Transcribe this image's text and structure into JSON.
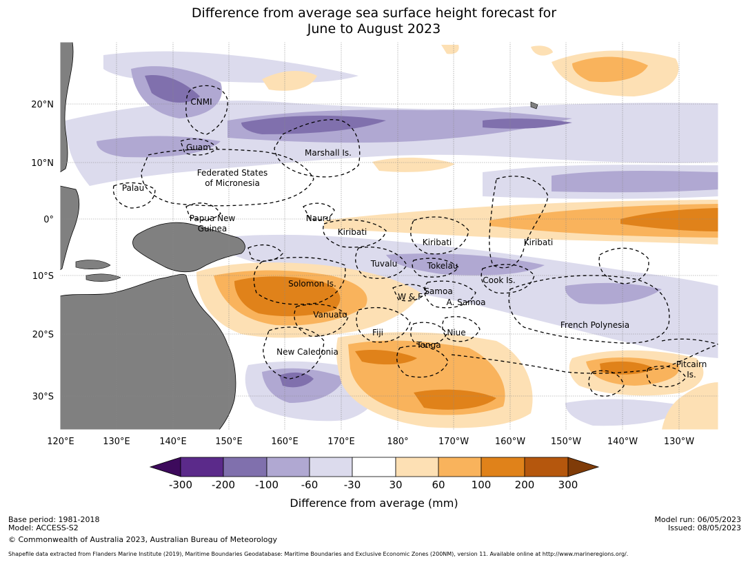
{
  "title": {
    "line1": "Difference from average sea surface height forecast for",
    "line2": "June to August 2023"
  },
  "map": {
    "lat_labels": [
      "20°N",
      "10°N",
      "0°",
      "10°S",
      "20°S",
      "30°S"
    ],
    "lon_labels": [
      "120°E",
      "130°E",
      "140°E",
      "150°E",
      "160°E",
      "170°E",
      "180°",
      "170°W",
      "160°W",
      "150°W",
      "140°W",
      "130°W"
    ],
    "regions": {
      "cnmi": "CNMI",
      "guam": "Guam",
      "marshall": "Marshall Is.",
      "fsm1": "Federated States",
      "fsm2": "of Micronesia",
      "palau": "Palau",
      "png1": "Papua New",
      "png2": "Guinea",
      "nauru": "Nauru",
      "kiribati_w": "Kiribati",
      "kiribati_c": "Kiribati",
      "kiribati_e": "Kiribati",
      "tuvalu": "Tuvalu",
      "tokelau": "Tokelau",
      "cook": "Cook Is.",
      "solomon": "Solomon Is.",
      "samoa": "Samoa",
      "wf": "W & F",
      "asamoa": "A. Samoa",
      "vanuatu": "Vanuatu",
      "fiji": "Fiji",
      "niue": "Niue",
      "tonga": "Tonga",
      "french_polynesia": "French Polynesia",
      "new_caledonia": "New Caledonia",
      "pitcairn1": "Pitcairn",
      "pitcairn2": "Is."
    }
  },
  "colorbar": {
    "ticks": [
      "-300",
      "-200",
      "-100",
      "-60",
      "-30",
      "30",
      "60",
      "100",
      "200",
      "300"
    ],
    "colors": [
      "#3d0a5c",
      "#5b2a8a",
      "#8070ad",
      "#b0a8d2",
      "#dcdbed",
      "#ffffff",
      "#fde0b4",
      "#f9b35c",
      "#e0821a",
      "#b5570d",
      "#7f3b08"
    ],
    "title": "Difference from average (mm)"
  },
  "footer": {
    "base_period": "Base period: 1981-2018",
    "model": "Model: ACCESS-S2",
    "copyright": "© Commonwealth of Australia 2023, Australian Bureau of Meteorology",
    "model_run": "Model run: 06/05/2023",
    "issued": "Issued: 08/05/2023",
    "shapefile": "Shapefile data extracted from Flanders Marine Institute (2019), Maritime Boundaries Geodatabase: Maritime Boundaries and Exclusive Economic Zones (200NM), version 11. Available online at http://www.marineregions.org/."
  }
}
